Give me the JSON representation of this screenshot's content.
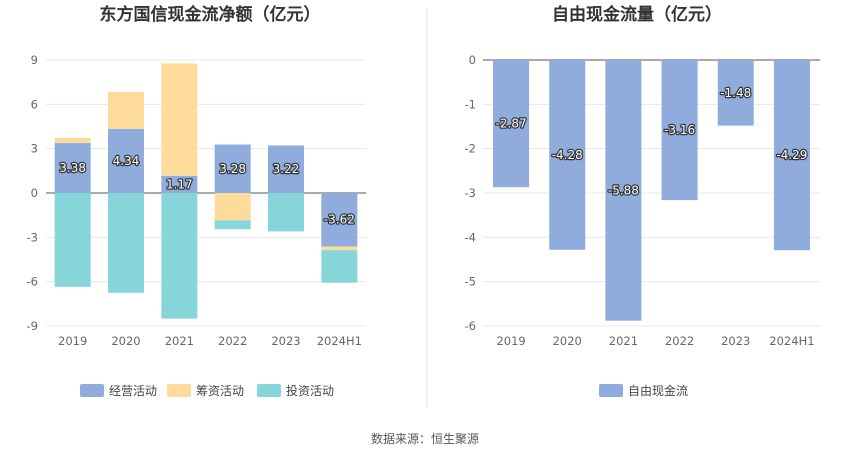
{
  "chart_data": [
    {
      "type": "bar",
      "stacked": true,
      "title": "东方国信现金流净额（亿元）",
      "categories": [
        "2019",
        "2020",
        "2021",
        "2022",
        "2023",
        "2024H1"
      ],
      "ylim": [
        -9,
        9
      ],
      "yticks": [
        9,
        6,
        3,
        0,
        -3,
        -6,
        -9
      ],
      "grid": true,
      "legend_position": "bottom",
      "series": [
        {
          "name": "经营活动",
          "color": "#8facdc",
          "values": [
            3.38,
            4.34,
            1.17,
            3.28,
            3.22,
            -3.62
          ]
        },
        {
          "name": "筹资活动",
          "color": "#fedb9b",
          "values": [
            0.35,
            2.5,
            7.6,
            -1.85,
            0,
            -0.25
          ]
        },
        {
          "name": "投资活动",
          "color": "#86d6d9",
          "values": [
            -6.35,
            -6.75,
            -8.5,
            -0.6,
            -2.6,
            -2.2
          ]
        }
      ],
      "data_labels": [
        "3.38",
        "4.34",
        "1.17",
        "3.28",
        "3.22",
        "-3.62"
      ]
    },
    {
      "type": "bar",
      "title": "自由现金流量（亿元）",
      "categories": [
        "2019",
        "2020",
        "2021",
        "2022",
        "2023",
        "2024H1"
      ],
      "ylim": [
        -6,
        0
      ],
      "yticks": [
        0,
        -1,
        -2,
        -3,
        -4,
        -5,
        -6
      ],
      "grid": true,
      "legend_position": "bottom",
      "series": [
        {
          "name": "自由现金流",
          "color": "#8facdc",
          "values": [
            -2.87,
            -4.28,
            -5.88,
            -3.16,
            -1.48,
            -4.29
          ]
        }
      ],
      "data_labels": [
        "-2.87",
        "-4.28",
        "-5.88",
        "-3.16",
        "-1.48",
        "-4.29"
      ]
    }
  ],
  "source": "数据来源：恒生聚源"
}
